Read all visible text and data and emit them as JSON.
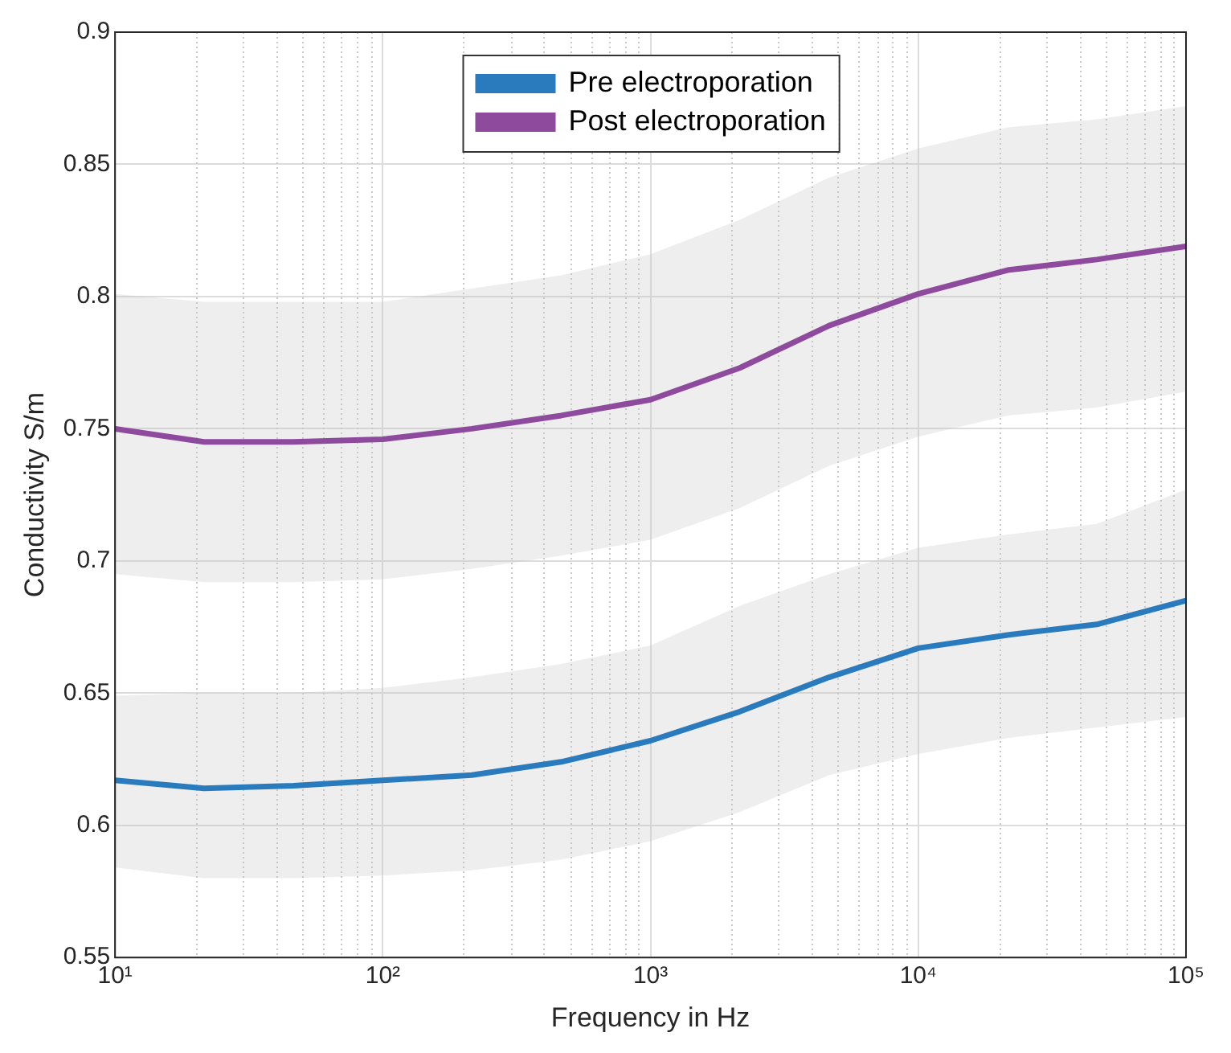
{
  "chart_data": {
    "type": "line",
    "xlabel": "Frequency in Hz",
    "ylabel": "Conductivity S/m",
    "log": "x",
    "x": [
      10,
      21.5,
      46.4,
      100,
      215,
      464,
      1000,
      2154,
      4642,
      10000,
      21544,
      46416,
      100000
    ],
    "series": [
      {
        "name": "Pre electroporation",
        "color": "#2a7bbd",
        "values": [
          0.617,
          0.614,
          0.615,
          0.617,
          0.619,
          0.624,
          0.632,
          0.643,
          0.656,
          0.667,
          0.672,
          0.676,
          0.685
        ],
        "lower": [
          0.584,
          0.58,
          0.58,
          0.581,
          0.583,
          0.587,
          0.594,
          0.605,
          0.619,
          0.627,
          0.633,
          0.637,
          0.641
        ],
        "upper": [
          0.649,
          0.65,
          0.65,
          0.652,
          0.656,
          0.661,
          0.668,
          0.683,
          0.695,
          0.705,
          0.71,
          0.714,
          0.727
        ]
      },
      {
        "name": "Post electroporation",
        "color": "#8e4b9e",
        "values": [
          0.75,
          0.745,
          0.745,
          0.746,
          0.75,
          0.755,
          0.761,
          0.773,
          0.789,
          0.801,
          0.81,
          0.814,
          0.819
        ],
        "lower": [
          0.695,
          0.692,
          0.692,
          0.693,
          0.697,
          0.702,
          0.708,
          0.72,
          0.736,
          0.747,
          0.755,
          0.758,
          0.764
        ],
        "upper": [
          0.801,
          0.798,
          0.798,
          0.798,
          0.803,
          0.808,
          0.816,
          0.829,
          0.845,
          0.856,
          0.864,
          0.867,
          0.872
        ]
      }
    ],
    "xlim": [
      10,
      100000
    ],
    "xticks": [
      {
        "value": 10,
        "label": "10¹"
      },
      {
        "value": 100,
        "label": "10²"
      },
      {
        "value": 1000,
        "label": "10³"
      },
      {
        "value": 10000,
        "label": "10⁴"
      },
      {
        "value": 100000,
        "label": "10⁵"
      }
    ],
    "ylim": [
      0.55,
      0.9
    ],
    "yticks": [
      0.55,
      0.6,
      0.65,
      0.7,
      0.75,
      0.8,
      0.85,
      0.9
    ],
    "grid": true,
    "legend": "top",
    "marker": "none",
    "line_style": "solid"
  }
}
